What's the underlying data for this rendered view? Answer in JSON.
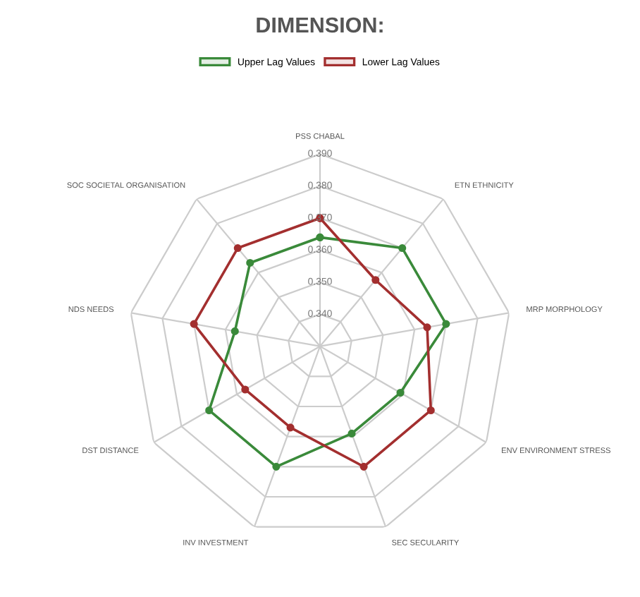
{
  "chart_data": {
    "type": "radar",
    "title": "DIMENSION:",
    "categories": [
      "PSS CHABAL",
      "ETN ETHNICITY",
      "MRP MORPHOLOGY",
      "ENV ENVIRONMENT STRESS",
      "SEC SECULARITY",
      "INV INVESTMENT",
      "DST DISTANCE",
      "NDS NEEDS",
      "SOC SOCIETAL ORGANISATION"
    ],
    "series": [
      {
        "name": "Upper Lag Values",
        "color": "#3a8a3a",
        "values": [
          0.364,
          0.37,
          0.37,
          0.359,
          0.359,
          0.37,
          0.37,
          0.357,
          0.364
        ]
      },
      {
        "name": "Lower Lag Values",
        "color": "#a32f2f",
        "values": [
          0.37,
          0.357,
          0.364,
          0.37,
          0.37,
          0.357,
          0.357,
          0.37,
          0.37
        ]
      }
    ],
    "ylim": [
      0.33,
      0.39
    ],
    "yticks": [
      {
        "value": 0.34,
        "label": "0.340"
      },
      {
        "value": 0.35,
        "label": "0.350"
      },
      {
        "value": 0.36,
        "label": "0.360"
      },
      {
        "value": 0.37,
        "label": "0.370"
      },
      {
        "value": 0.38,
        "label": "0.380"
      },
      {
        "value": 0.39,
        "label": "0.390"
      }
    ],
    "grid": true,
    "legend": "top",
    "marker": "circle",
    "line_style": "solid"
  }
}
